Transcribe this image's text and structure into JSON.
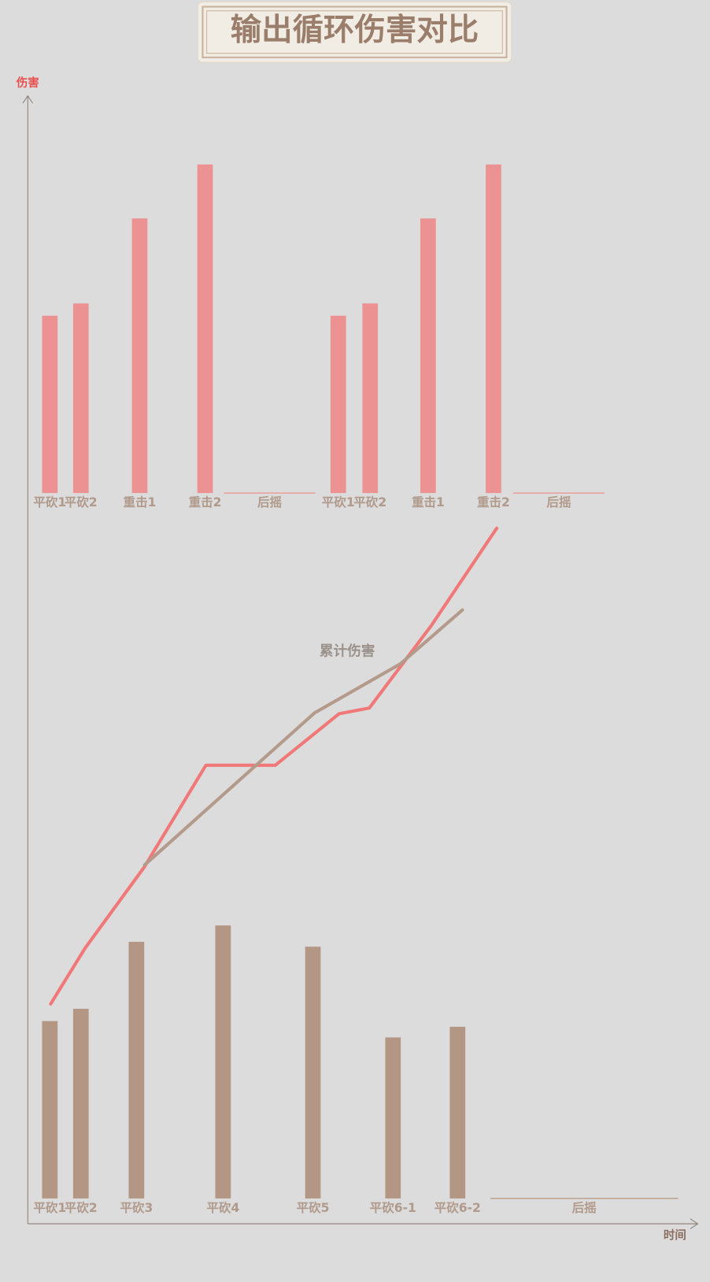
{
  "title": "输出循环伤害对比",
  "chart_data": [
    {
      "type": "bar",
      "color": "#ec9292",
      "categories": [
        "平砍1",
        "平砍2",
        "重击1",
        "重击2",
        "后摇",
        "平砍1",
        "平砍2",
        "重击1",
        "重击2",
        "后摇"
      ],
      "x": [
        27,
        65,
        137,
        217,
        296,
        380,
        419,
        490,
        570,
        650
      ],
      "values": [
        217,
        232,
        336,
        402,
        0,
        217,
        232,
        336,
        402,
        0
      ]
    },
    {
      "type": "line",
      "ylabel": "伤害",
      "xlabel": "时间",
      "annotation": "累计伤害",
      "xlim": [
        0,
        820
      ],
      "ylim": [
        0,
        1380
      ],
      "series": [
        {
          "color": "#f07878",
          "x": [
            28,
            70,
            143,
            218,
            303,
            381,
            418,
            494,
            574
          ],
          "values": [
            269,
            337,
            437,
            561,
            561,
            624,
            631,
            732,
            851
          ]
        },
        {
          "color": "#b39a8a",
          "x": [
            143,
            351,
            456,
            532
          ],
          "values": [
            439,
            625,
            685,
            751
          ]
        }
      ]
    },
    {
      "type": "bar",
      "color": "#b39684",
      "categories": [
        "平砍1",
        "平砍2",
        "平砍3",
        "平砍4",
        "平砍5",
        "平砍6-1",
        "平砍6-2",
        "后摇"
      ],
      "x": [
        27,
        65,
        133,
        239,
        349,
        447,
        526,
        681
      ],
      "values": [
        217,
        232,
        314,
        334,
        308,
        197,
        210,
        0
      ]
    }
  ]
}
